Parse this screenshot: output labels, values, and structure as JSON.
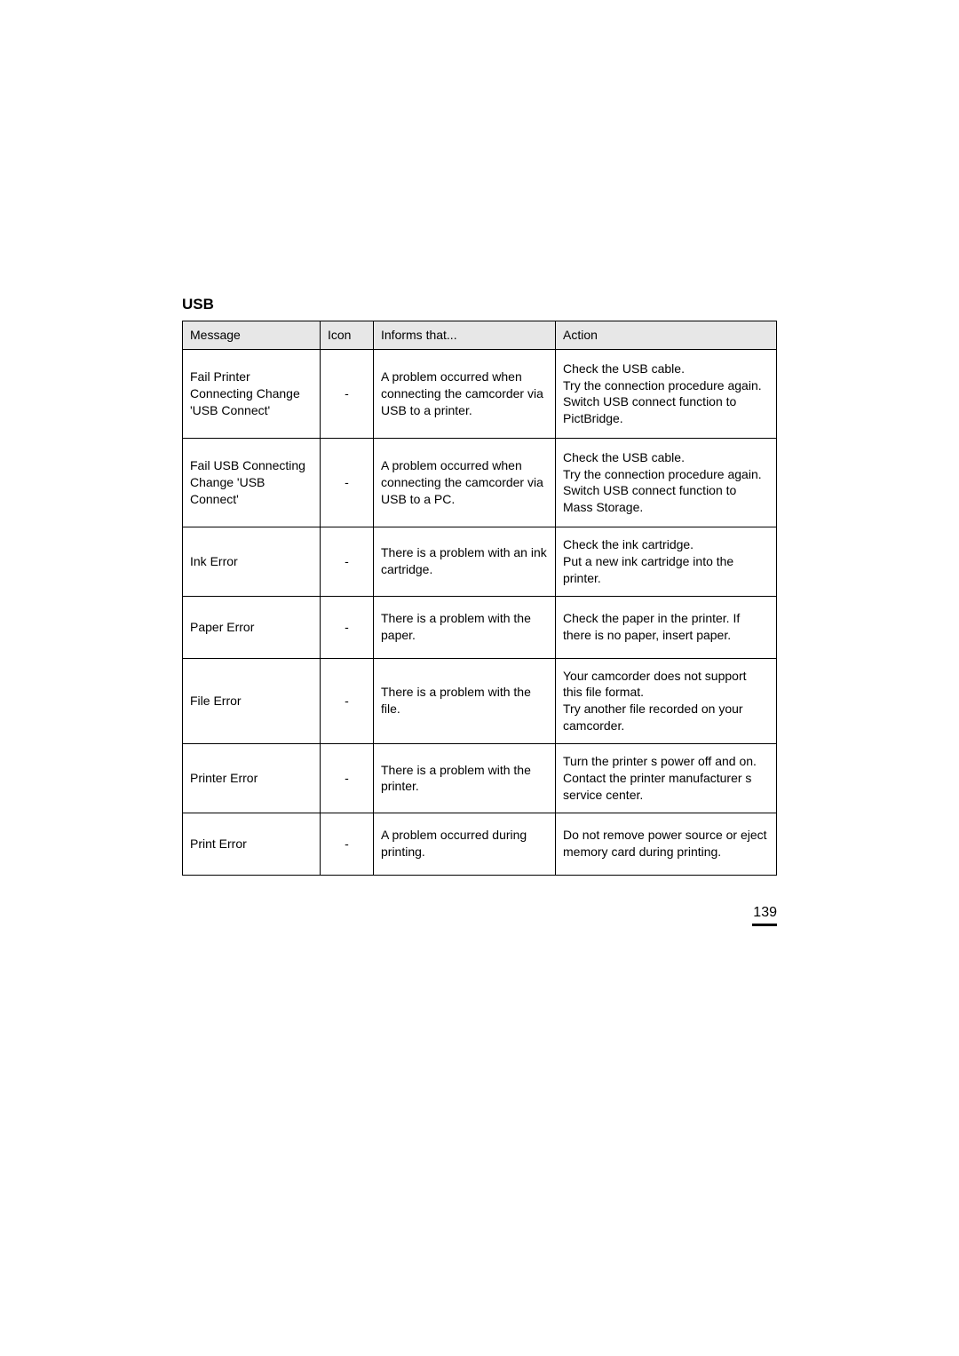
{
  "page": {
    "number": "139"
  },
  "table": {
    "section_title": "USB",
    "columns": {
      "message": "Message",
      "icon": "Icon",
      "informs": "Informs that...",
      "action": "Action"
    },
    "rows": [
      {
        "message": "Fail Printer Connecting Change 'USB Connect'",
        "icon": "-",
        "informs": "A problem occurred when connecting the camcorder via USB to a printer.",
        "action": "Check the USB cable.\nTry the connection procedure again.\nSwitch  USB connect  function to  PictBridge.",
        "height": "tall"
      },
      {
        "message": "Fail USB Connecting Change 'USB Connect'",
        "icon": "-",
        "informs": "A problem occurred when connecting the camcorder via USB to a PC.",
        "action": "Check the USB cable.\nTry the connection procedure again.\nSwitch  USB connect  function to  Mass Storage.",
        "height": "tall"
      },
      {
        "message": "Ink Error",
        "icon": "-",
        "informs": "There is a problem with an ink cartridge.",
        "action": "Check the ink cartridge.\nPut a new ink cartridge into the printer.",
        "height": "mid"
      },
      {
        "message": "Paper Error",
        "icon": "-",
        "informs": "There is a problem with the paper.",
        "action": "Check the paper in the printer. If there is no paper, insert paper.",
        "height": "mid"
      },
      {
        "message": "File Error",
        "icon": "-",
        "informs": "There is a problem with the ﬁle.",
        "action": "Your camcorder does not support this ﬁle format.\nTry another ﬁle recorded on your camcorder.",
        "height": "mid"
      },
      {
        "message": "Printer Error",
        "icon": "-",
        "informs": "There is a problem with the printer.",
        "action": "Turn the printer s power off and on.\nContact the printer manufacturer s service center.",
        "height": "mid"
      },
      {
        "message": "Print Error",
        "icon": "-",
        "informs": "A problem occurred during printing.",
        "action": "Do not remove power source or eject memory card during printing.",
        "height": "mid"
      }
    ]
  }
}
